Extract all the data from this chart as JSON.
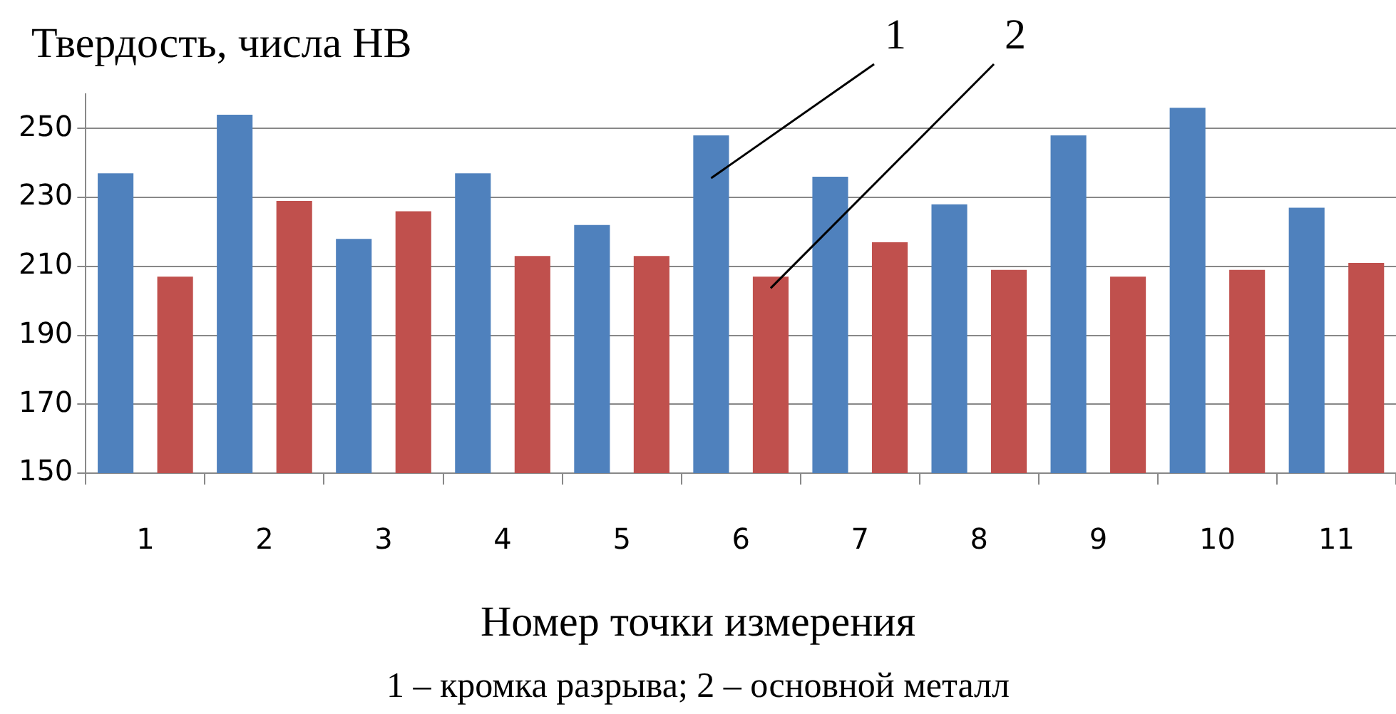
{
  "chart_data": {
    "type": "bar",
    "ylabel": "Твердость, числа HB",
    "xlabel": "Номер точки измерения",
    "categories": [
      "1",
      "2",
      "3",
      "4",
      "5",
      "6",
      "7",
      "8",
      "9",
      "10",
      "11"
    ],
    "series": [
      {
        "color": "#4f81bd",
        "values": [
          237,
          254,
          218,
          237,
          222,
          248,
          236,
          228,
          248,
          256,
          227
        ]
      },
      {
        "color": "#c0504d",
        "values": [
          207,
          229,
          226,
          213,
          213,
          207,
          217,
          209,
          207,
          209,
          211
        ]
      }
    ],
    "ylim": [
      150,
      260
    ],
    "yticks": [
      150,
      170,
      190,
      210,
      230,
      250
    ],
    "grid": "y",
    "legend": false,
    "annotations": [
      "1",
      "2",
      "1 – кромка разрыва; 2 – основной металл"
    ]
  }
}
